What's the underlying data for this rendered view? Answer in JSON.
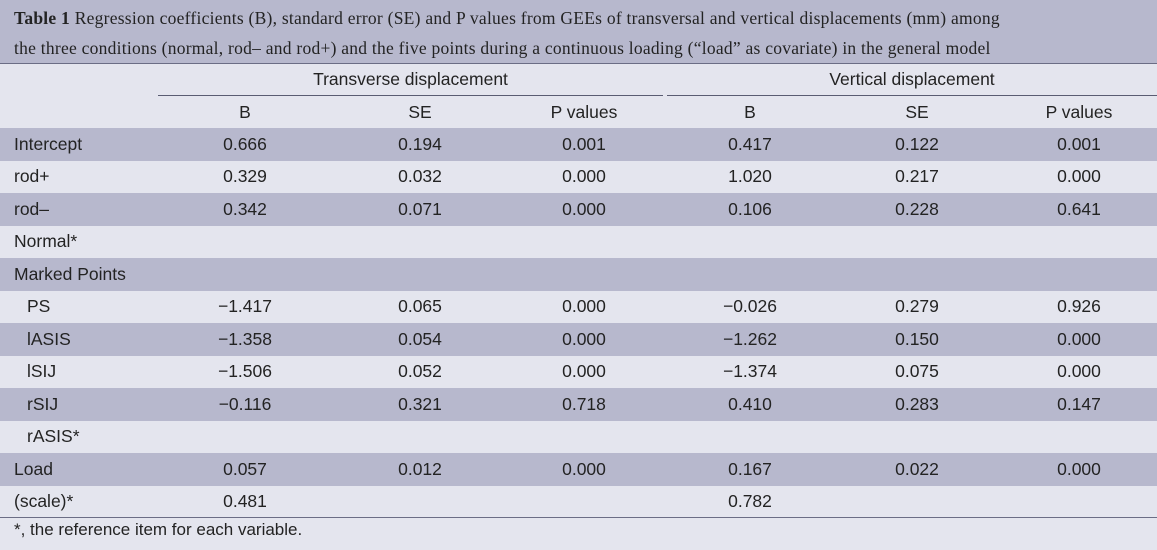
{
  "caption": {
    "label": "Table 1",
    "line1": " Regression coefficients (B), standard error (SE) and P values from GEEs of transversal and vertical displacements (mm) among",
    "line2": "the three conditions (normal, rod– and rod+) and the five points during a continuous loading (“load” as covariate) in the general model"
  },
  "groups": {
    "transverse": "Transverse displacement",
    "vertical": "Vertical displacement"
  },
  "columns": [
    "B",
    "SE",
    "P values",
    "B",
    "SE",
    "P values"
  ],
  "rows": [
    {
      "name": "Intercept",
      "indent": false,
      "cells": [
        "0.666",
        "0.194",
        "0.001",
        "0.417",
        "0.122",
        "0.001"
      ]
    },
    {
      "name": "rod+",
      "indent": false,
      "cells": [
        "0.329",
        "0.032",
        "0.000",
        "1.020",
        "0.217",
        "0.000"
      ]
    },
    {
      "name": "rod–",
      "indent": false,
      "cells": [
        "0.342",
        "0.071",
        "0.000",
        "0.106",
        "0.228",
        "0.641"
      ]
    },
    {
      "name": "Normal*",
      "indent": false,
      "cells": [
        "",
        "",
        "",
        "",
        "",
        ""
      ]
    },
    {
      "name": "Marked Points",
      "indent": false,
      "cells": [
        "",
        "",
        "",
        "",
        "",
        ""
      ]
    },
    {
      "name": "PS",
      "indent": true,
      "cells": [
        "−1.417",
        "0.065",
        "0.000",
        "−0.026",
        "0.279",
        "0.926"
      ]
    },
    {
      "name": "lASIS",
      "indent": true,
      "cells": [
        "−1.358",
        "0.054",
        "0.000",
        "−1.262",
        "0.150",
        "0.000"
      ]
    },
    {
      "name": "lSIJ",
      "indent": true,
      "cells": [
        "−1.506",
        "0.052",
        "0.000",
        "−1.374",
        "0.075",
        "0.000"
      ]
    },
    {
      "name": "rSIJ",
      "indent": true,
      "cells": [
        "−0.116",
        "0.321",
        "0.718",
        "0.410",
        "0.283",
        "0.147"
      ]
    },
    {
      "name": "rASIS*",
      "indent": true,
      "cells": [
        "",
        "",
        "",
        "",
        "",
        ""
      ]
    },
    {
      "name": "Load",
      "indent": false,
      "cells": [
        "0.057",
        "0.012",
        "0.000",
        "0.167",
        "0.022",
        "0.000"
      ]
    },
    {
      "name": "(scale)*",
      "indent": false,
      "cells": [
        "0.481",
        "",
        "",
        "0.782",
        "",
        ""
      ]
    }
  ],
  "footnote": "*, the reference item for each variable.",
  "colors": {
    "shade": "#b7b8cd",
    "light": "#e4e5ee",
    "text": "#232323"
  }
}
